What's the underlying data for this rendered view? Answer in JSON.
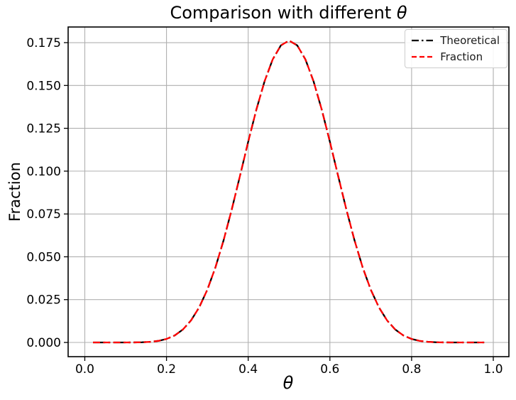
{
  "figure": {
    "title_prefix": "Comparison with different ",
    "title_symbol": "θ",
    "xlabel_symbol": "θ",
    "ylabel": "Fraction"
  },
  "chart_data": {
    "type": "line",
    "title": "Comparison with different θ",
    "xlabel": "θ",
    "ylabel": "Fraction",
    "grid": true,
    "legend_position": "upper right",
    "xlim": [
      -0.0408,
      1.0382
    ],
    "ylim": [
      -0.00829,
      0.18413
    ],
    "x_tick_values": [
      0.0,
      0.2,
      0.4,
      0.6,
      0.8,
      1.0
    ],
    "x_tick_labels": [
      "0.0",
      "0.2",
      "0.4",
      "0.6",
      "0.8",
      "1.0"
    ],
    "y_tick_values": [
      0.0,
      0.025,
      0.05,
      0.075,
      0.1,
      0.125,
      0.15,
      0.175
    ],
    "y_tick_labels": [
      "0.000",
      "0.025",
      "0.050",
      "0.075",
      "0.100",
      "0.125",
      "0.150",
      "0.175"
    ],
    "x": [
      0.02,
      0.04,
      0.06,
      0.08,
      0.1,
      0.12,
      0.14,
      0.16,
      0.18,
      0.2,
      0.22,
      0.24,
      0.26,
      0.28,
      0.3,
      0.32,
      0.34,
      0.36,
      0.38,
      0.4,
      0.42,
      0.44,
      0.46,
      0.48,
      0.5,
      0.52,
      0.54,
      0.56,
      0.58,
      0.6,
      0.62,
      0.64,
      0.66,
      0.68,
      0.7,
      0.72,
      0.74,
      0.76,
      0.78,
      0.8,
      0.82,
      0.84,
      0.86,
      0.88,
      0.9,
      0.92,
      0.94,
      0.96,
      0.98
    ],
    "series": [
      {
        "name": "Theoretical",
        "color": "#000000",
        "linestyle": "dashdot",
        "values": [
          0.0,
          0.0,
          0.0,
          1e-06,
          6e-06,
          3.2e-05,
          0.000118,
          0.000355,
          0.000907,
          0.002031,
          0.00409,
          0.007531,
          0.012842,
          0.020489,
          0.030817,
          0.043973,
          0.059818,
          0.07788,
          0.097354,
          0.117141,
          0.135947,
          0.152405,
          0.165242,
          0.173399,
          0.176197,
          0.173399,
          0.165242,
          0.152405,
          0.135947,
          0.117141,
          0.097354,
          0.07788,
          0.059818,
          0.043973,
          0.030817,
          0.020489,
          0.012842,
          0.007531,
          0.00409,
          0.002031,
          0.000907,
          0.000355,
          0.000118,
          3.2e-05,
          6e-06,
          1e-06,
          0.0,
          0.0,
          0.0
        ]
      },
      {
        "name": "Fraction",
        "color": "#ff0000",
        "linestyle": "dashed",
        "values": [
          0.0,
          0.0,
          0.0,
          1e-06,
          6e-06,
          3.2e-05,
          0.000118,
          0.000355,
          0.000907,
          0.002031,
          0.00409,
          0.007531,
          0.012842,
          0.020489,
          0.030817,
          0.043973,
          0.059818,
          0.07788,
          0.097354,
          0.117141,
          0.135947,
          0.152405,
          0.165242,
          0.173399,
          0.176197,
          0.173399,
          0.165242,
          0.152405,
          0.135947,
          0.117141,
          0.097354,
          0.07788,
          0.059818,
          0.043973,
          0.030817,
          0.020489,
          0.012842,
          0.007531,
          0.00409,
          0.002031,
          0.000907,
          0.000355,
          0.000118,
          3.2e-05,
          6e-06,
          1e-06,
          0.0,
          0.0,
          0.0
        ]
      }
    ],
    "colors": {
      "grid": "#b0b0b0",
      "spine": "#000000",
      "tick_text": "#000000",
      "background": "#ffffff"
    }
  },
  "legend": {
    "items": [
      {
        "label": "Theoretical",
        "color": "#000000",
        "linestyle": "dashdot"
      },
      {
        "label": "Fraction",
        "color": "#ff0000",
        "linestyle": "dashed"
      }
    ]
  }
}
